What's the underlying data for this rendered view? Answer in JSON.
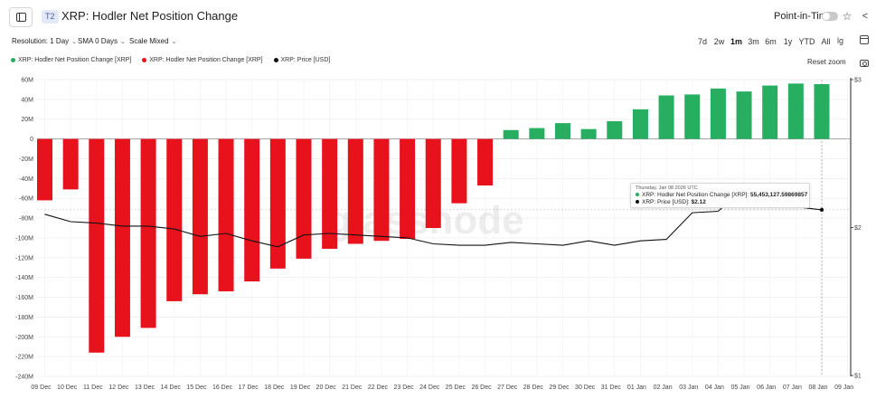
{
  "header": {
    "tier_badge": "T2",
    "title": "XRP: Hodler Net Position Change",
    "point_in_time_label": "Point-in-Time",
    "point_in_time_enabled": false,
    "star_icon": "star-icon",
    "share_icon": "share-icon",
    "sidebar_icon": "sidebar-toggle-icon"
  },
  "controls": {
    "resolution": "Resolution: 1 Day",
    "sma": "SMA 0 Days",
    "scale": "Scale Mixed",
    "ranges": [
      "7d",
      "2w",
      "1m",
      "3m",
      "6m",
      "1y",
      "YTD",
      "All"
    ],
    "active_range": "1m",
    "log_icon_label": "lg",
    "calendar_icon": "calendar-icon"
  },
  "legend": {
    "items": [
      {
        "label": "XRP: Hodler Net Position Change [XRP]",
        "color": "#27ae60"
      },
      {
        "label": "XRP: Hodler Net Position Change [XRP]",
        "color": "#e8121c"
      },
      {
        "label": "XRP: Price [USD]",
        "color": "#111111"
      }
    ],
    "reset_zoom": "Reset zoom",
    "camera_icon": "camera-icon"
  },
  "watermark": "glassnode",
  "tooltip": {
    "date": "Thursday, Jan 08 2026 UTC",
    "rows": [
      {
        "label": "XRP: Hodler Net Position Change [XRP]:",
        "value": "55,453,127.59869857",
        "color": "#27ae60"
      },
      {
        "label": "XRP: Price [USD]:",
        "value": "$2.12",
        "color": "#111111"
      }
    ]
  },
  "chart_data": {
    "type": "bar",
    "title": "XRP: Hodler Net Position Change",
    "categories": [
      "09 Dec",
      "10 Dec",
      "11 Dec",
      "12 Dec",
      "13 Dec",
      "14 Dec",
      "15 Dec",
      "16 Dec",
      "17 Dec",
      "18 Dec",
      "19 Dec",
      "20 Dec",
      "21 Dec",
      "22 Dec",
      "23 Dec",
      "24 Dec",
      "25 Dec",
      "26 Dec",
      "27 Dec",
      "28 Dec",
      "29 Dec",
      "30 Dec",
      "31 Dec",
      "01 Jan",
      "02 Jan",
      "03 Jan",
      "04 Jan",
      "05 Jan",
      "06 Jan",
      "07 Jan",
      "08 Jan"
    ],
    "x_tick_labels": [
      "09 Dec",
      "10 Dec",
      "11 Dec",
      "12 Dec",
      "13 Dec",
      "14 Dec",
      "15 Dec",
      "16 Dec",
      "17 Dec",
      "18 Dec",
      "19 Dec",
      "20 Dec",
      "21 Dec",
      "22 Dec",
      "23 Dec",
      "24 Dec",
      "25 Dec",
      "26 Dec",
      "27 Dec",
      "28 Dec",
      "29 Dec",
      "30 Dec",
      "31 Dec",
      "01 Jan",
      "02 Jan",
      "03 Jan",
      "04 Jan",
      "05 Jan",
      "06 Jan",
      "07 Jan",
      "08 Jan",
      "09 Jan"
    ],
    "series": [
      {
        "name": "XRP: Hodler Net Position Change [XRP]",
        "axis": "left",
        "unit": "M",
        "positive_color": "#27ae60",
        "negative_color": "#e8121c",
        "values": [
          -62,
          -51,
          -216,
          -200,
          -191,
          -164,
          -157,
          -154,
          -144,
          -131,
          -121,
          -111,
          -106,
          -103,
          -101,
          -90,
          -65,
          -47,
          9,
          11,
          16,
          10,
          18,
          30,
          44,
          45,
          51,
          48,
          54,
          56,
          55.45
        ]
      },
      {
        "name": "XRP: Price [USD]",
        "axis": "right",
        "color": "#111111",
        "values": [
          2.09,
          2.04,
          2.03,
          2.01,
          2.01,
          1.99,
          1.94,
          1.96,
          1.91,
          1.87,
          1.95,
          1.96,
          1.95,
          1.94,
          1.93,
          1.89,
          1.88,
          1.88,
          1.9,
          1.89,
          1.88,
          1.91,
          1.88,
          1.91,
          1.92,
          2.1,
          2.11,
          2.27,
          2.25,
          2.14,
          2.12
        ]
      }
    ],
    "y_left": {
      "min": -240,
      "max": 60,
      "step": 20,
      "suffix": "M"
    },
    "y_right": {
      "ticks": [
        1,
        2,
        3
      ],
      "labels": [
        "$1",
        "$2",
        "$3"
      ]
    },
    "crosshair_category": "08 Jan",
    "grid": true,
    "legend_position": "top-left"
  }
}
